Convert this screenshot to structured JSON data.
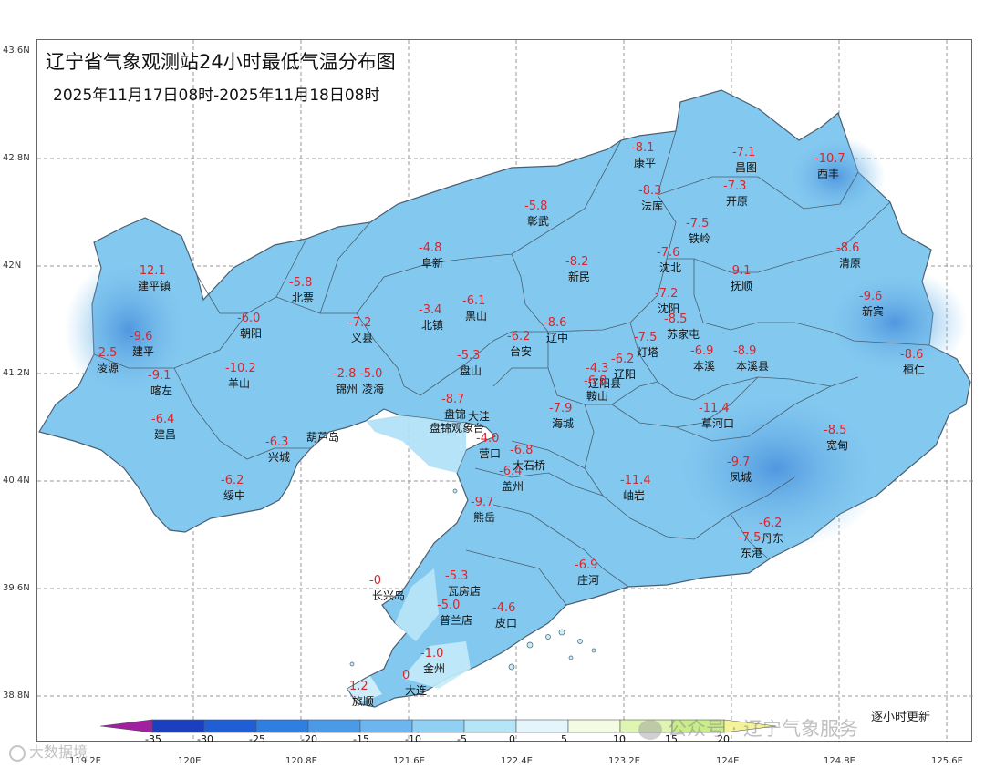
{
  "title": "辽宁省气象观测站24小时最低气温分布图",
  "subtitle": "2025年11月17日08时-2025年11月18日08时",
  "update_note": "逐小时更新",
  "watermark_right": "公众号 · 辽宁气象服务",
  "watermark_left": "大数据境",
  "lat_ticks": [
    "43.6N",
    "42.8N",
    "42N",
    "41.2N",
    "40.4N",
    "39.6N",
    "38.8N"
  ],
  "lon_ticks": [
    "119.2E",
    "120E",
    "120.8E",
    "121.6E",
    "122.4E",
    "123.2E",
    "124E",
    "124.8E",
    "125.6E"
  ],
  "legend": {
    "labels": [
      "-35",
      "-30",
      "-25",
      "-20",
      "-15",
      "-10",
      "-5",
      "0",
      "5",
      "10",
      "15",
      "20"
    ],
    "colors": [
      "#a020a0",
      "#1a3fbf",
      "#1f5fd6",
      "#2f7fe0",
      "#4a9ae8",
      "#6cb6ef",
      "#8fd0f4",
      "#b5e6f8",
      "#e4f6fb",
      "#f3fbe2",
      "#def5b4",
      "#c9ee87",
      "#f4f39a"
    ]
  },
  "stations": [
    {
      "value": "-8.1",
      "name": "康平"
    },
    {
      "value": "-7.1",
      "name": "昌图"
    },
    {
      "value": "-10.7",
      "name": "西丰"
    },
    {
      "value": "-8.3",
      "name": "法库"
    },
    {
      "value": "-7.3",
      "name": "开原"
    },
    {
      "value": "-5.8",
      "name": "彰武"
    },
    {
      "value": "-7.5",
      "name": "铁岭"
    },
    {
      "value": "-4.8",
      "name": "阜新"
    },
    {
      "value": "-8.2",
      "name": "新民"
    },
    {
      "value": "-7.6",
      "name": "沈北"
    },
    {
      "value": "-8.6",
      "name": "清原"
    },
    {
      "value": "-12.1",
      "name": "建平镇"
    },
    {
      "value": "-5.8",
      "name": "北票"
    },
    {
      "value": "-9.1",
      "name": "抚顺"
    },
    {
      "value": "-7.2",
      "name": "沈阳"
    },
    {
      "value": "-9.6",
      "name": "新宾"
    },
    {
      "value": "-3.4",
      "name": "北镇"
    },
    {
      "value": "-6.1",
      "name": "黑山"
    },
    {
      "value": "-6.0",
      "name": "朝阳"
    },
    {
      "value": "-7.2",
      "name": "义县"
    },
    {
      "value": "-8.6",
      "name": "辽中"
    },
    {
      "value": "-8.5",
      "name": "苏家屯"
    },
    {
      "value": "-9.6",
      "name": "建平"
    },
    {
      "value": "-2.5",
      "name": "凌源"
    },
    {
      "value": "-6.2",
      "name": "台安"
    },
    {
      "value": "-7.5",
      "name": "灯塔"
    },
    {
      "value": "-6.9",
      "name": "本溪"
    },
    {
      "value": "-8.9",
      "name": "本溪县"
    },
    {
      "value": "-8.6",
      "name": "桓仁"
    },
    {
      "value": "-5.3",
      "name": "盘山"
    },
    {
      "value": "-6.2",
      "name": "辽阳"
    },
    {
      "value": "-9.1",
      "name": "喀左"
    },
    {
      "value": "-10.2",
      "name": "羊山"
    },
    {
      "value": "-2.8",
      "name": "锦州"
    },
    {
      "value": "-5.0",
      "name": "凌海"
    },
    {
      "value": "-4.3",
      "name": "辽阳县"
    },
    {
      "value": "-6.8",
      "name": "鞍山"
    },
    {
      "value": "-8.7",
      "name": "盘锦"
    },
    {
      "value": "",
      "name": "大洼"
    },
    {
      "value": "",
      "name": "盘锦观象台"
    },
    {
      "value": "-7.9",
      "name": "海城"
    },
    {
      "value": "-11.4",
      "name": "草河口"
    },
    {
      "value": "-6.4",
      "name": "建昌"
    },
    {
      "value": "",
      "name": "葫芦岛"
    },
    {
      "value": "-6.3",
      "name": "兴城"
    },
    {
      "value": "-4.0",
      "name": "营口"
    },
    {
      "value": "-6.8",
      "name": "大石桥"
    },
    {
      "value": "-6.4",
      "name": "盖州"
    },
    {
      "value": "-8.5",
      "name": "宽甸"
    },
    {
      "value": "-9.7",
      "name": "凤城"
    },
    {
      "value": "-6.2",
      "name": "绥中"
    },
    {
      "value": "-11.4",
      "name": "岫岩"
    },
    {
      "value": "-9.7",
      "name": "熊岳"
    },
    {
      "value": "-6.2",
      "name": "丹东"
    },
    {
      "value": "-7.5",
      "name": "东港"
    },
    {
      "value": "-6.9",
      "name": "庄河"
    },
    {
      "value": "-5.3",
      "name": "瓦房店"
    },
    {
      "value": "-0",
      "name": "长兴岛"
    },
    {
      "value": "-5.0",
      "name": "普兰店"
    },
    {
      "value": "-4.6",
      "name": "皮口"
    },
    {
      "value": "-1.0",
      "name": "金州"
    },
    {
      "value": "0",
      "name": "大连"
    },
    {
      "value": "1.2",
      "name": "旅顺"
    }
  ]
}
